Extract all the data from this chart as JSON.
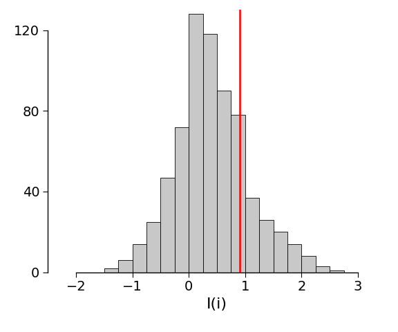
{
  "title": "",
  "xlabel": "I(i)",
  "ylabel": "",
  "observed_value": 0.9,
  "bar_color": "#c8c8c8",
  "bar_edgecolor": "#000000",
  "vline_color": "red",
  "xlim": [
    -2.5,
    3.5
  ],
  "ylim": [
    0,
    130
  ],
  "xticks": [
    -2,
    -1,
    0,
    1,
    2,
    3
  ],
  "yticks": [
    0,
    40,
    80,
    120
  ],
  "bin_edges": [
    -1.5,
    -1.25,
    -1.0,
    -0.75,
    -0.5,
    -0.25,
    0.0,
    0.25,
    0.5,
    0.75,
    1.0,
    1.25,
    1.5,
    1.75,
    2.0,
    2.25,
    2.5
  ],
  "bin_heights": [
    2,
    6,
    14,
    25,
    47,
    72,
    128,
    118,
    90,
    78,
    37,
    26,
    20,
    14,
    8,
    3,
    1
  ],
  "background_color": "#ffffff",
  "xlabel_fontsize": 16,
  "ytick_fontsize": 14,
  "xtick_fontsize": 14,
  "bar_linewidth": 0.6,
  "vline_linewidth": 1.8
}
